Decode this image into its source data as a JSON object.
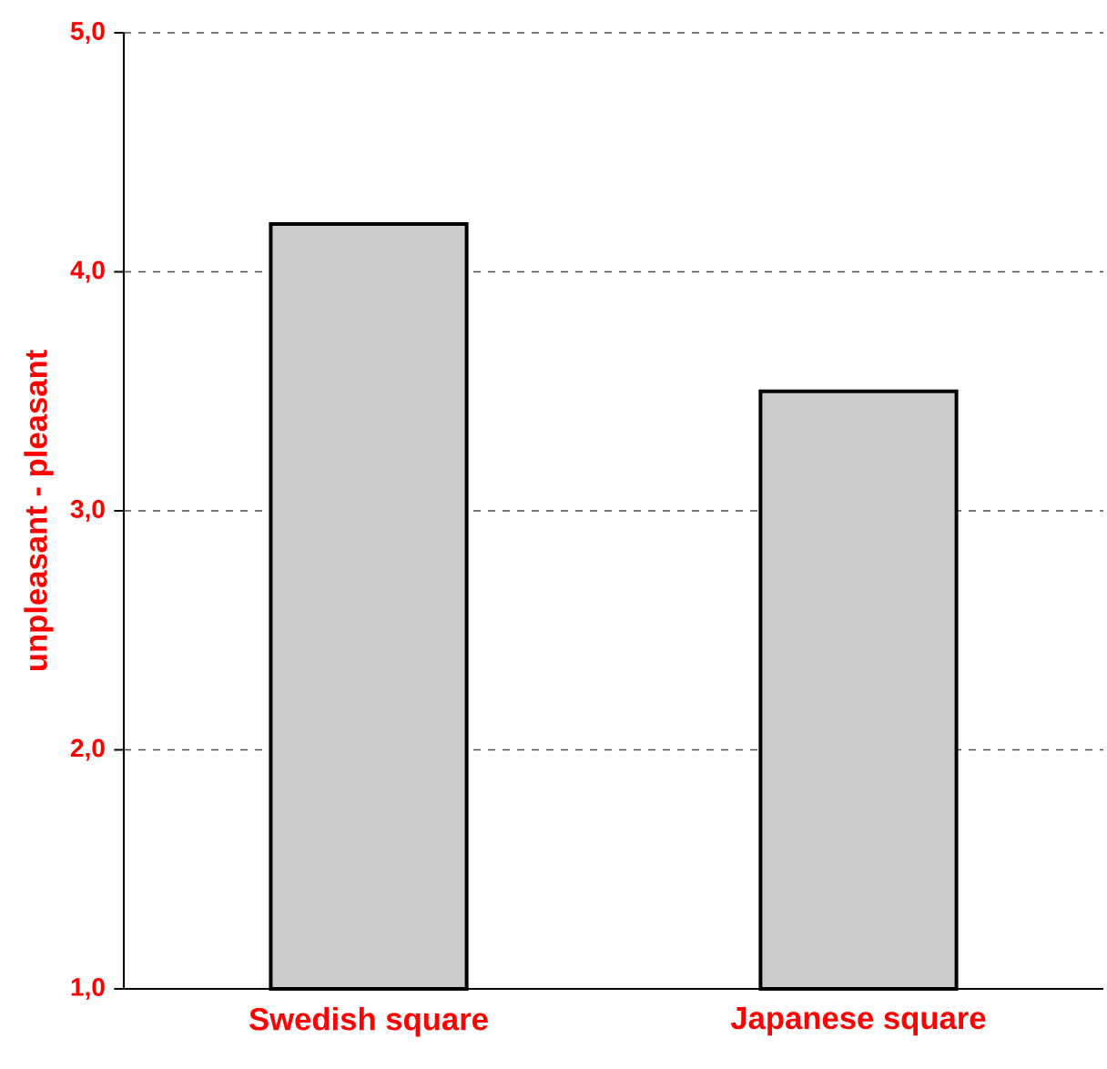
{
  "chart_data": {
    "type": "bar",
    "ylabel": "unpleasant - pleasant",
    "categories": [
      "Swedish square",
      "Japanese square"
    ],
    "values": [
      4.2,
      3.5
    ],
    "color": "#cccccc",
    "ylim": [
      1,
      5
    ],
    "yticks": [
      {
        "value": 1,
        "label": "1,0"
      },
      {
        "value": 2,
        "label": "2,0"
      },
      {
        "value": 3,
        "label": "3,0"
      },
      {
        "value": 4,
        "label": "4,0"
      },
      {
        "value": 5,
        "label": "5,0"
      }
    ],
    "grid": "y"
  }
}
